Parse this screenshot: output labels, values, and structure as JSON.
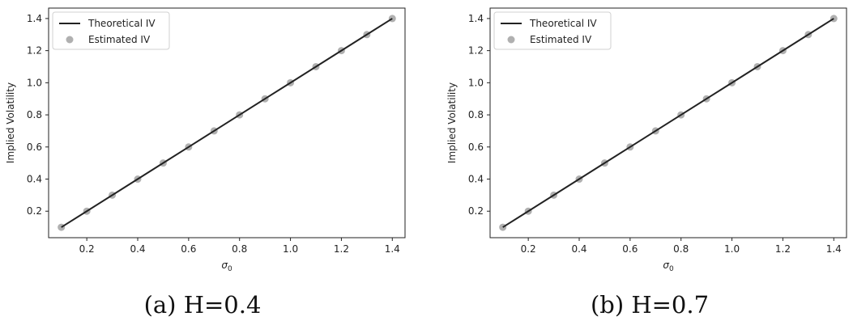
{
  "chart_data": [
    {
      "type": "scatter",
      "caption": "(a) H=0.4",
      "xlabel": "σ0",
      "ylabel": "Implied Volatility",
      "xlim": [
        0.05,
        1.45
      ],
      "ylim": [
        0.035,
        1.465
      ],
      "xticks": [
        0.2,
        0.4,
        0.6,
        0.8,
        1.0,
        1.2,
        1.4
      ],
      "yticks": [
        0.2,
        0.4,
        0.6,
        0.8,
        1.0,
        1.2,
        1.4
      ],
      "xtick_labels": [
        "0.2",
        "0.4",
        "0.6",
        "0.8",
        "1.0",
        "1.2",
        "1.4"
      ],
      "ytick_labels": [
        "0.2",
        "0.4",
        "0.6",
        "0.8",
        "1.0",
        "1.2",
        "1.4"
      ],
      "grid": false,
      "legend_position": "top-left",
      "series": [
        {
          "name": "Theoretical IV",
          "kind": "line",
          "color": "#222222",
          "x": [
            0.1,
            0.2,
            0.3,
            0.4,
            0.5,
            0.6,
            0.7,
            0.8,
            0.9,
            1.0,
            1.1,
            1.2,
            1.3,
            1.4
          ],
          "y": [
            0.1,
            0.2,
            0.3,
            0.4,
            0.5,
            0.6,
            0.7,
            0.8,
            0.9,
            1.0,
            1.1,
            1.2,
            1.3,
            1.4
          ]
        },
        {
          "name": "Estimated IV",
          "kind": "scatter",
          "color": "#b0b0b0",
          "x": [
            0.1,
            0.2,
            0.3,
            0.4,
            0.5,
            0.6,
            0.7,
            0.8,
            0.9,
            1.0,
            1.1,
            1.2,
            1.3,
            1.4
          ],
          "y": [
            0.1,
            0.2,
            0.3,
            0.4,
            0.5,
            0.6,
            0.7,
            0.8,
            0.9,
            1.0,
            1.1,
            1.2,
            1.3,
            1.4
          ]
        }
      ]
    },
    {
      "type": "scatter",
      "caption": "(b) H=0.7",
      "xlabel": "σ0",
      "ylabel": "Implied Volatility",
      "xlim": [
        0.05,
        1.45
      ],
      "ylim": [
        0.035,
        1.465
      ],
      "xticks": [
        0.2,
        0.4,
        0.6,
        0.8,
        1.0,
        1.2,
        1.4
      ],
      "yticks": [
        0.2,
        0.4,
        0.6,
        0.8,
        1.0,
        1.2,
        1.4
      ],
      "xtick_labels": [
        "0.2",
        "0.4",
        "0.6",
        "0.8",
        "1.0",
        "1.2",
        "1.4"
      ],
      "ytick_labels": [
        "0.2",
        "0.4",
        "0.6",
        "0.8",
        "1.0",
        "1.2",
        "1.4"
      ],
      "grid": false,
      "legend_position": "top-left",
      "series": [
        {
          "name": "Theoretical IV",
          "kind": "line",
          "color": "#222222",
          "x": [
            0.1,
            0.2,
            0.3,
            0.4,
            0.5,
            0.6,
            0.7,
            0.8,
            0.9,
            1.0,
            1.1,
            1.2,
            1.3,
            1.4
          ],
          "y": [
            0.1,
            0.2,
            0.3,
            0.4,
            0.5,
            0.6,
            0.7,
            0.8,
            0.9,
            1.0,
            1.1,
            1.2,
            1.3,
            1.4
          ]
        },
        {
          "name": "Estimated IV",
          "kind": "scatter",
          "color": "#b0b0b0",
          "x": [
            0.1,
            0.2,
            0.3,
            0.4,
            0.5,
            0.6,
            0.7,
            0.8,
            0.9,
            1.0,
            1.1,
            1.2,
            1.3,
            1.4
          ],
          "y": [
            0.1,
            0.2,
            0.3,
            0.4,
            0.5,
            0.6,
            0.7,
            0.8,
            0.9,
            1.0,
            1.1,
            1.2,
            1.3,
            1.4
          ]
        }
      ]
    }
  ]
}
